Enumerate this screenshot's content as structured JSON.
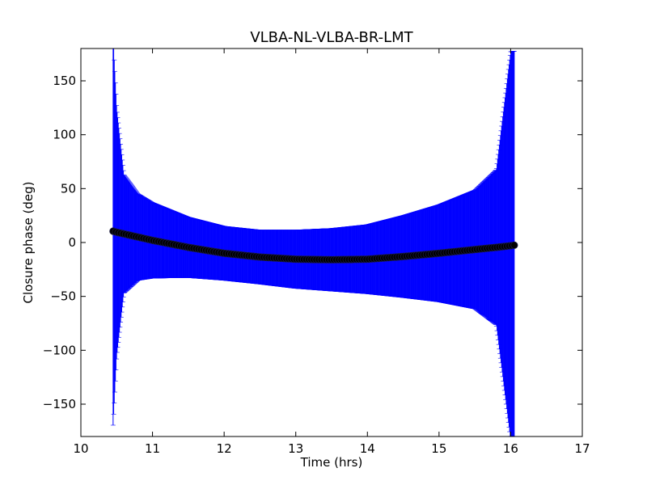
{
  "chart_data": {
    "type": "scatter",
    "title": "VLBA-NL-VLBA-BR-LMT",
    "xlabel": "Time (hrs)",
    "ylabel": "Closure phase (deg)",
    "xlim": [
      10,
      17
    ],
    "ylim": [
      -180,
      180
    ],
    "xticks": [
      10,
      11,
      12,
      13,
      14,
      15,
      16,
      17
    ],
    "xtick_labels": [
      "10",
      "11",
      "12",
      "13",
      "14",
      "15",
      "16",
      "17"
    ],
    "yticks": [
      -150,
      -100,
      -50,
      0,
      50,
      100,
      150
    ],
    "ytick_labels": [
      "−150",
      "−100",
      "−50",
      "0",
      "50",
      "100",
      "150"
    ],
    "grid": false,
    "legend": "none",
    "series": [
      {
        "style": "points with vertical error bars",
        "marker_color": "#000000",
        "errorbar_color": "#0000ff",
        "x": [
          10.45,
          10.5,
          10.6,
          10.8,
          11.0,
          11.5,
          12.0,
          12.5,
          13.0,
          13.5,
          14.0,
          14.5,
          15.0,
          15.5,
          15.8,
          16.0,
          16.05
        ],
        "y": [
          10.5,
          9.5,
          8.0,
          5.0,
          2.0,
          -4.5,
          -10.0,
          -13.5,
          -15.5,
          -16.0,
          -15.5,
          -13.0,
          -10.0,
          -6.5,
          -4.5,
          -3.0,
          -2.5
        ],
        "yerr": [
          180,
          115,
          55,
          40,
          35,
          28,
          25,
          25,
          27,
          29,
          32,
          38,
          45,
          55,
          72,
          180,
          180
        ]
      }
    ],
    "colors": {
      "errorbar": "#0000ff",
      "marker": "#000000",
      "axes": "#000000",
      "background": "#ffffff"
    }
  }
}
